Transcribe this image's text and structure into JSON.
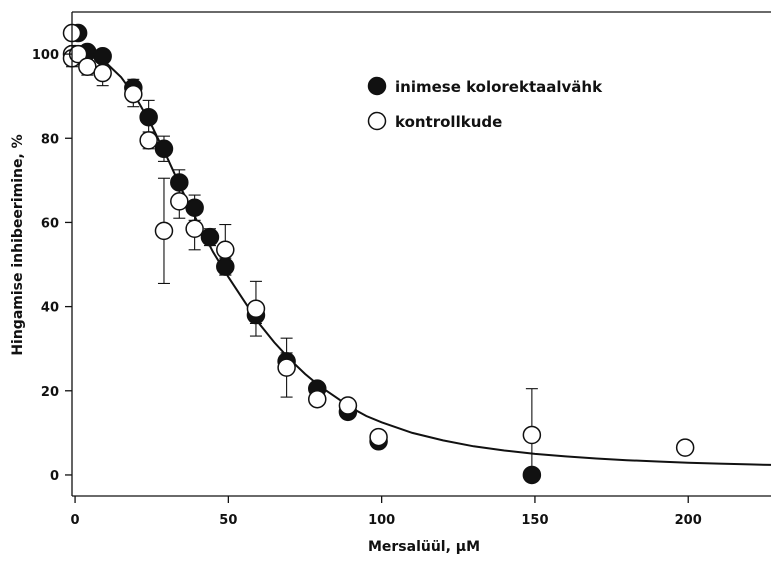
{
  "chart_data": {
    "type": "scatter",
    "title": "",
    "xlabel": "Mersalüül, μM",
    "ylabel": "Hingamise inhibeerimine, %",
    "xlim": [
      -1,
      227
    ],
    "ylim": [
      -5,
      110
    ],
    "x_ticks": [
      0,
      50,
      100,
      150,
      200
    ],
    "y_ticks": [
      0,
      20,
      40,
      60,
      80,
      100
    ],
    "legend_position": "top-right",
    "grid": false,
    "series": [
      {
        "name": "inimese kolorektaalvähk",
        "marker": "filled-circle",
        "color": "#111111",
        "points": [
          {
            "x": 0,
            "y": 100,
            "err": 2
          },
          {
            "x": 1,
            "y": 105,
            "err": 0
          },
          {
            "x": 4,
            "y": 100.5,
            "err": 1
          },
          {
            "x": 9,
            "y": 99.5,
            "err": 1
          },
          {
            "x": 19,
            "y": 92,
            "err": 2
          },
          {
            "x": 24,
            "y": 85,
            "err": 4
          },
          {
            "x": 29,
            "y": 77.5,
            "err": 3
          },
          {
            "x": 34,
            "y": 69.5,
            "err": 3
          },
          {
            "x": 39,
            "y": 63.5,
            "err": 3
          },
          {
            "x": 44,
            "y": 56.5,
            "err": 2
          },
          {
            "x": 49,
            "y": 49.5,
            "err": 2
          },
          {
            "x": 59,
            "y": 38,
            "err": 2
          },
          {
            "x": 69,
            "y": 27,
            "err": 2
          },
          {
            "x": 79,
            "y": 20.5,
            "err": 1
          },
          {
            "x": 89,
            "y": 15,
            "err": 1
          },
          {
            "x": 99,
            "y": 8,
            "err": 1
          },
          {
            "x": 149,
            "y": 0,
            "err": 0
          }
        ]
      },
      {
        "name": "kontrollkude",
        "marker": "open-circle",
        "color": "#111111",
        "points": [
          {
            "x": -1,
            "y": 105,
            "err": 0
          },
          {
            "x": -1,
            "y": 100,
            "err": 1
          },
          {
            "x": -1,
            "y": 99,
            "err": 2
          },
          {
            "x": 1,
            "y": 100,
            "err": 1
          },
          {
            "x": 4,
            "y": 97,
            "err": 2
          },
          {
            "x": 9,
            "y": 95.5,
            "err": 3
          },
          {
            "x": 19,
            "y": 90.5,
            "err": 3
          },
          {
            "x": 24,
            "y": 79.5,
            "err": 2
          },
          {
            "x": 29,
            "y": 58,
            "err": 12.5
          },
          {
            "x": 34,
            "y": 65,
            "err": 4
          },
          {
            "x": 39,
            "y": 58.5,
            "err": 5
          },
          {
            "x": 49,
            "y": 53.5,
            "err": 6
          },
          {
            "x": 59,
            "y": 39.5,
            "err": 6.5
          },
          {
            "x": 69,
            "y": 25.5,
            "err": 7
          },
          {
            "x": 79,
            "y": 18,
            "err": 1
          },
          {
            "x": 89,
            "y": 16.5,
            "err": 1
          },
          {
            "x": 99,
            "y": 9,
            "err": 1
          },
          {
            "x": 149,
            "y": 9.5,
            "err": 11
          },
          {
            "x": 199,
            "y": 6.5,
            "err": 0
          }
        ]
      }
    ],
    "fit_curve": {
      "type": "sigmoid",
      "points": [
        [
          0,
          101
        ],
        [
          5,
          100
        ],
        [
          10,
          98
        ],
        [
          15,
          94.5
        ],
        [
          20,
          89.5
        ],
        [
          25,
          83
        ],
        [
          30,
          75.5
        ],
        [
          35,
          67.5
        ],
        [
          40,
          60
        ],
        [
          45,
          53
        ],
        [
          50,
          47
        ],
        [
          55,
          41.5
        ],
        [
          60,
          36
        ],
        [
          65,
          31.5
        ],
        [
          70,
          27.5
        ],
        [
          75,
          24
        ],
        [
          80,
          21
        ],
        [
          85,
          18.5
        ],
        [
          90,
          16
        ],
        [
          95,
          14
        ],
        [
          100,
          12.5
        ],
        [
          110,
          10
        ],
        [
          120,
          8.2
        ],
        [
          130,
          6.8
        ],
        [
          140,
          5.8
        ],
        [
          150,
          5
        ],
        [
          160,
          4.4
        ],
        [
          170,
          3.9
        ],
        [
          180,
          3.5
        ],
        [
          190,
          3.2
        ],
        [
          200,
          2.9
        ],
        [
          210,
          2.7
        ],
        [
          220,
          2.5
        ],
        [
          227,
          2.4
        ]
      ]
    }
  }
}
